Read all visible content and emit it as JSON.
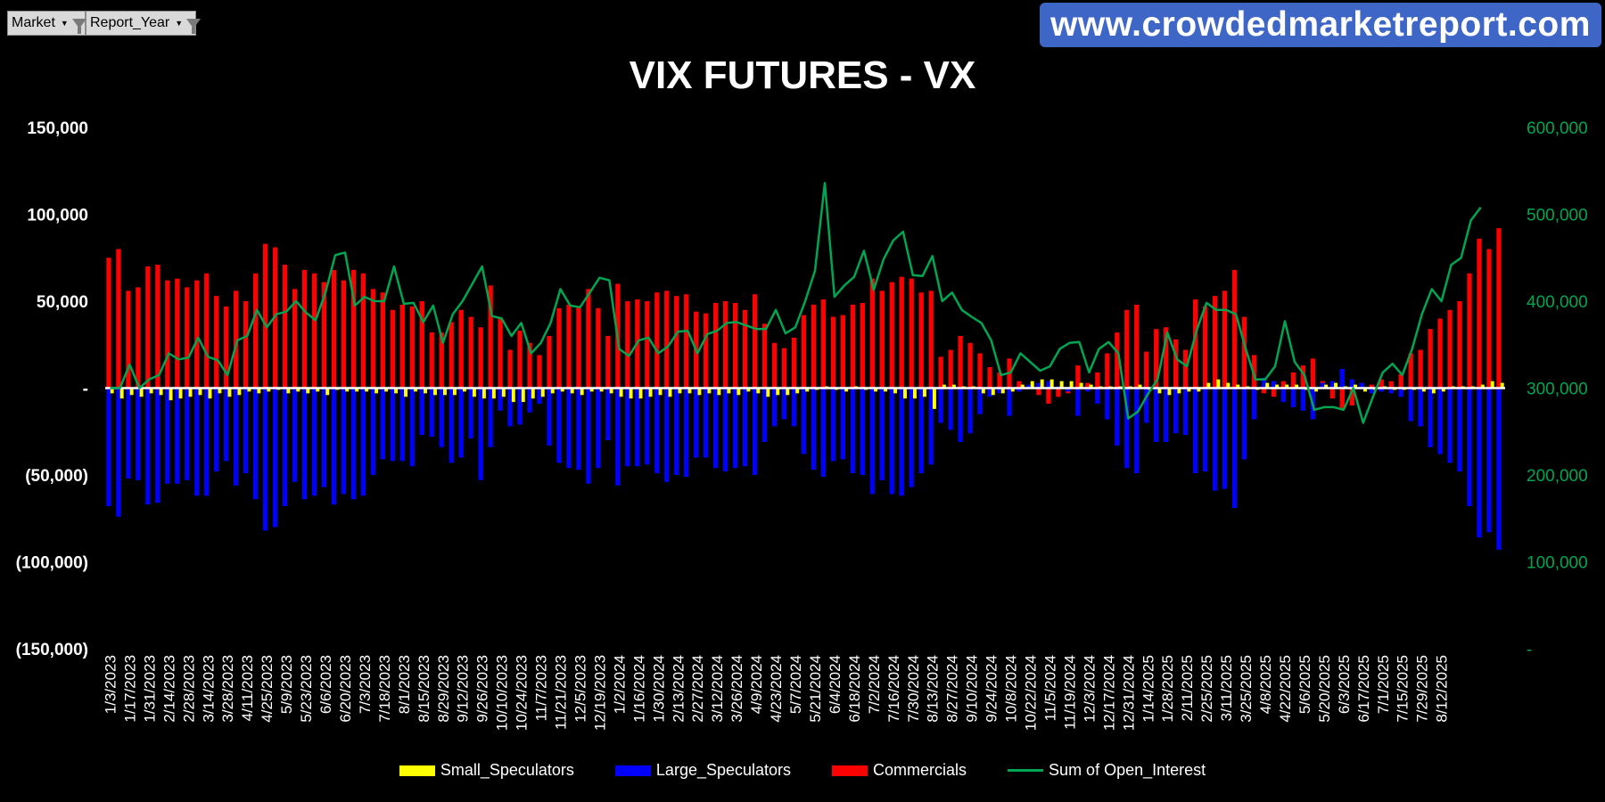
{
  "filters": [
    {
      "label": "Market"
    },
    {
      "label": "Report_Year"
    }
  ],
  "banner": {
    "text": "www.crowdedmarketreport.com"
  },
  "colors": {
    "small": "#ffff00",
    "large": "#0000ff",
    "commercials": "#ff0000",
    "open_interest": "#00a651",
    "left_axis_text": "#ffffff",
    "right_axis_text": "#00a651",
    "background": "#000000"
  },
  "chart_data": {
    "type": "bar",
    "title": "VIX FUTURES - VX",
    "ylim": [
      -150000,
      150000
    ],
    "y2lim": [
      0,
      600000
    ],
    "left_ticks": [
      {
        "value": 150000,
        "label": "150,000"
      },
      {
        "value": 100000,
        "label": "100,000"
      },
      {
        "value": 50000,
        "label": "50,000"
      },
      {
        "value": 0,
        "label": "-"
      },
      {
        "value": -50000,
        "label": "(50,000)"
      },
      {
        "value": -100000,
        "label": "(100,000)"
      },
      {
        "value": -150000,
        "label": "(150,000)"
      }
    ],
    "right_ticks": [
      {
        "value": 600000,
        "label": "600,000"
      },
      {
        "value": 500000,
        "label": "500,000"
      },
      {
        "value": 400000,
        "label": "400,000"
      },
      {
        "value": 300000,
        "label": "300,000"
      },
      {
        "value": 200000,
        "label": "200,000"
      },
      {
        "value": 100000,
        "label": "100,000"
      },
      {
        "value": 0,
        "label": "-"
      }
    ],
    "x_tick_labels": [
      "1/3/2023",
      "1/17/2023",
      "1/31/2023",
      "2/14/2023",
      "2/28/2023",
      "3/14/2023",
      "3/28/2023",
      "4/11/2023",
      "4/25/2023",
      "5/9/2023",
      "5/23/2023",
      "6/6/2023",
      "6/20/2023",
      "7/3/2023",
      "7/18/2023",
      "8/1/2023",
      "8/15/2023",
      "8/29/2023",
      "9/12/2023",
      "9/26/2023",
      "10/10/2023",
      "10/24/2023",
      "11/7/2023",
      "11/21/2023",
      "12/5/2023",
      "12/19/2023",
      "1/2/2024",
      "1/16/2024",
      "1/30/2024",
      "2/13/2024",
      "2/27/2024",
      "3/12/2024",
      "3/26/2024",
      "4/9/2024",
      "4/23/2024",
      "5/7/2024",
      "5/21/2024",
      "6/4/2024",
      "6/18/2024",
      "7/2/2024",
      "7/16/2024",
      "7/30/2024",
      "8/13/2024",
      "8/27/2024",
      "9/10/2024",
      "9/24/2024",
      "10/8/2024",
      "10/22/2024",
      "11/5/2024",
      "11/19/2024",
      "12/3/2024",
      "12/17/2024",
      "12/31/2024",
      "1/14/2025",
      "1/28/2025",
      "2/11/2025",
      "2/25/2025",
      "3/11/2025",
      "3/25/2025",
      "4/8/2025",
      "4/22/2025",
      "5/6/2025",
      "5/20/2025",
      "6/3/2025",
      "6/17/2025",
      "7/1/2025",
      "7/15/2025",
      "7/29/2025",
      "8/12/2025"
    ],
    "series": [
      {
        "name": "Commercials",
        "axis": "left",
        "values": [
          75000,
          80000,
          56000,
          58000,
          70000,
          71000,
          62000,
          63000,
          58000,
          62000,
          66000,
          53000,
          47000,
          56000,
          50000,
          66000,
          83000,
          81000,
          71000,
          57000,
          68000,
          66000,
          61000,
          68000,
          62000,
          68000,
          66000,
          57000,
          55000,
          45000,
          48000,
          47000,
          50000,
          32000,
          32000,
          38000,
          45000,
          41000,
          35000,
          59000,
          40000,
          22000,
          33000,
          26000,
          19000,
          30000,
          46000,
          48000,
          47000,
          57000,
          46000,
          30000,
          60000,
          50000,
          51000,
          50000,
          55000,
          56000,
          53000,
          54000,
          44000,
          43000,
          49000,
          50000,
          49000,
          45000,
          54000,
          37000,
          26000,
          23000,
          29000,
          42000,
          48000,
          51000,
          41000,
          42000,
          48000,
          49000,
          63000,
          56000,
          61000,
          64000,
          63000,
          55000,
          56000,
          18000,
          22000,
          30000,
          26000,
          20000,
          12000,
          9000,
          17000,
          4000,
          1000,
          -4000,
          -9000,
          -5000,
          -3000,
          13000,
          3000,
          9000,
          20000,
          32000,
          45000,
          48000,
          21000,
          34000,
          35000,
          28000,
          22000,
          51000,
          47000,
          53000,
          56000,
          68000,
          41000,
          19000,
          -3000,
          -5000,
          4000,
          9000,
          13000,
          17000,
          4000,
          -6000,
          -12000,
          -10000,
          3000,
          2000,
          5000,
          4000,
          8000,
          20000,
          22000,
          34000,
          40000,
          45000,
          50000,
          66000,
          86000,
          80000,
          92000
        ]
      },
      {
        "name": "Large_Speculators",
        "axis": "left",
        "values": [
          -68000,
          -74000,
          -52000,
          -53000,
          -67000,
          -66000,
          -55000,
          -55000,
          -53000,
          -62000,
          -62000,
          -48000,
          -42000,
          -56000,
          -49000,
          -64000,
          -82000,
          -80000,
          -68000,
          -54000,
          -64000,
          -62000,
          -57000,
          -67000,
          -61000,
          -64000,
          -62000,
          -50000,
          -41000,
          -42000,
          -42000,
          -45000,
          -27000,
          -28000,
          -34000,
          -43000,
          -40000,
          -29000,
          -53000,
          -34000,
          -13000,
          -22000,
          -21000,
          -14000,
          -9000,
          -33000,
          -43000,
          -46000,
          -47000,
          -55000,
          -46000,
          -30000,
          -56000,
          -45000,
          -45000,
          -44000,
          -49000,
          -54000,
          -50000,
          -51000,
          -40000,
          -40000,
          -46000,
          -48000,
          -46000,
          -45000,
          -50000,
          -31000,
          -22000,
          -18000,
          -22000,
          -38000,
          -47000,
          -51000,
          -42000,
          -41000,
          -49000,
          -50000,
          -61000,
          -53000,
          -61000,
          -62000,
          -57000,
          -49000,
          -44000,
          -20000,
          -24000,
          -31000,
          -26000,
          -15000,
          -5000,
          -3000,
          -16000,
          -2000,
          2000,
          3000,
          4000,
          1000,
          -2000,
          -16000,
          -2000,
          -9000,
          -18000,
          -33000,
          -46000,
          -49000,
          -20000,
          -31000,
          -31000,
          -26000,
          -27000,
          -49000,
          -48000,
          -59000,
          -58000,
          -69000,
          -41000,
          -18000,
          6000,
          4000,
          -8000,
          -11000,
          -13000,
          -18000,
          3000,
          4000,
          11000,
          5000,
          3000,
          -3000,
          -2000,
          -3000,
          -5000,
          -19000,
          -22000,
          -34000,
          -38000,
          -43000,
          -48000,
          -68000,
          -86000,
          -83000,
          -93000
        ]
      },
      {
        "name": "Small_Speculators",
        "axis": "left",
        "values": [
          -3000,
          -6000,
          -4000,
          -5000,
          -3000,
          -4000,
          -7000,
          -6000,
          -5000,
          -4000,
          -6000,
          -3000,
          -5000,
          -4000,
          -2000,
          -3000,
          -2000,
          -1000,
          -3000,
          -2000,
          -3000,
          -2000,
          -4000,
          -1000,
          -2000,
          -2000,
          -2000,
          -3000,
          -2000,
          -3000,
          -5000,
          -2000,
          -3000,
          -4000,
          -4000,
          -4000,
          -2000,
          -5000,
          -6000,
          -6000,
          -5000,
          -8000,
          -8000,
          -6000,
          -5000,
          -3000,
          -2000,
          -3000,
          -4000,
          -2000,
          -2000,
          -3000,
          -5000,
          -6000,
          -6000,
          -5000,
          -4000,
          -5000,
          -3000,
          -3000,
          -4000,
          -3000,
          -4000,
          -3000,
          -4000,
          -2000,
          -3000,
          -5000,
          -4000,
          -4000,
          -3000,
          -2000,
          -1000,
          1000,
          -1000,
          -2000,
          1000,
          -1000,
          -2000,
          -2000,
          -3000,
          -6000,
          -6000,
          -5000,
          -12000,
          2000,
          2000,
          1000,
          1000,
          -3000,
          -4000,
          -3000,
          -2000,
          2000,
          4000,
          5000,
          5000,
          4000,
          4000,
          3000,
          2000,
          1000,
          1000,
          1000,
          1000,
          2000,
          -1000,
          -3000,
          -4000,
          -3000,
          -2000,
          -2000,
          3000,
          5000,
          3000,
          2000,
          1000,
          -1000,
          3000,
          2000,
          2000,
          2000,
          -1000,
          -2000,
          2000,
          3000,
          1000,
          2000,
          -2000,
          -1000,
          1000,
          -1000,
          -1000,
          -1000,
          -2000,
          -3000,
          -2000,
          1000,
          1000,
          1000,
          2000,
          4000,
          3000
        ]
      },
      {
        "name": "Sum of Open_Interest",
        "axis": "right",
        "type": "line",
        "values": [
          300000,
          300000,
          327000,
          300000,
          310000,
          315000,
          340000,
          333000,
          335000,
          358000,
          336000,
          332000,
          315000,
          355000,
          360000,
          390000,
          370000,
          385000,
          388000,
          400000,
          387000,
          378000,
          410000,
          453000,
          456000,
          395000,
          405000,
          400000,
          400000,
          440000,
          397000,
          398000,
          376000,
          395000,
          352000,
          385000,
          400000,
          420000,
          440000,
          383000,
          380000,
          360000,
          375000,
          340000,
          352000,
          375000,
          414000,
          395000,
          393000,
          410000,
          427000,
          424000,
          345000,
          337000,
          355000,
          358000,
          340000,
          348000,
          365000,
          366000,
          340000,
          362000,
          366000,
          375000,
          376000,
          372000,
          368000,
          368000,
          390000,
          363000,
          370000,
          400000,
          435000,
          536000,
          405000,
          418000,
          428000,
          458000,
          413000,
          448000,
          470000,
          480000,
          430000,
          429000,
          452000,
          400000,
          410000,
          390000,
          382000,
          375000,
          355000,
          315000,
          318000,
          340000,
          330000,
          320000,
          325000,
          345000,
          352000,
          353000,
          318000,
          345000,
          353000,
          340000,
          265000,
          273000,
          293000,
          310000,
          364000,
          333000,
          325000,
          367000,
          398000,
          390000,
          390000,
          385000,
          345000,
          310000,
          310000,
          325000,
          377000,
          330000,
          315000,
          275000,
          278000,
          278000,
          275000,
          300000,
          260000,
          290000,
          318000,
          328000,
          315000,
          345000,
          385000,
          414000,
          400000,
          442000,
          450000,
          493000,
          508000
        ]
      }
    ],
    "legend": [
      {
        "key": "small",
        "label": "Small_Speculators"
      },
      {
        "key": "large",
        "label": "Large_Speculators"
      },
      {
        "key": "commercials",
        "label": "Commercials"
      },
      {
        "key": "open_interest",
        "label": "Sum of Open_Interest"
      }
    ]
  }
}
